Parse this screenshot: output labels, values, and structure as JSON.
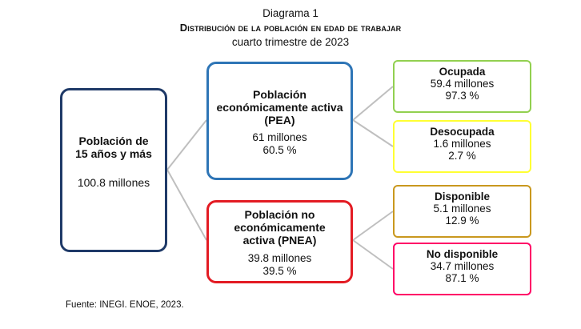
{
  "header": {
    "diagram_label": "Diagrama 1",
    "title": "Distribución de la población en edad de trabajar",
    "subtitle": "cuarto trimestre de 2023"
  },
  "nodes": {
    "total": {
      "title_line1": "Población de",
      "title_line2": "15 años y más",
      "value": "100.8 millones",
      "border_color": "#1f3a68"
    },
    "pea": {
      "title_line1": "Población",
      "title_line2": "económicamente activa",
      "abbr": "PEA",
      "value": "61 millones",
      "percent": "60.5 %",
      "border_color": "#2e75b6"
    },
    "pnea": {
      "title_line1": "Población no",
      "title_line2": "económicamente",
      "title_line3": "activa",
      "abbr": "PNEA",
      "value": "39.8 millones",
      "percent": "39.5 %",
      "border_color": "#e31b23"
    },
    "ocupada": {
      "title": "Ocupada",
      "value": "59.4 millones",
      "percent": "97.3 %",
      "border_color": "#92d050"
    },
    "desocupada": {
      "title": "Desocupada",
      "value": "1.6 millones",
      "percent": "2.7 %",
      "border_color": "#ffff33"
    },
    "disponible": {
      "title": "Disponible",
      "value": "5.1 millones",
      "percent": "12.9 %",
      "border_color": "#c9981e"
    },
    "no_disponible": {
      "title": "No disponible",
      "value": "34.7 millones",
      "percent": "87.1 %",
      "border_color": "#ff0066"
    }
  },
  "source": {
    "label": "Fuente:",
    "text": "INEGI. ENOE, 2023."
  },
  "connector_color": "#bfbfbf"
}
